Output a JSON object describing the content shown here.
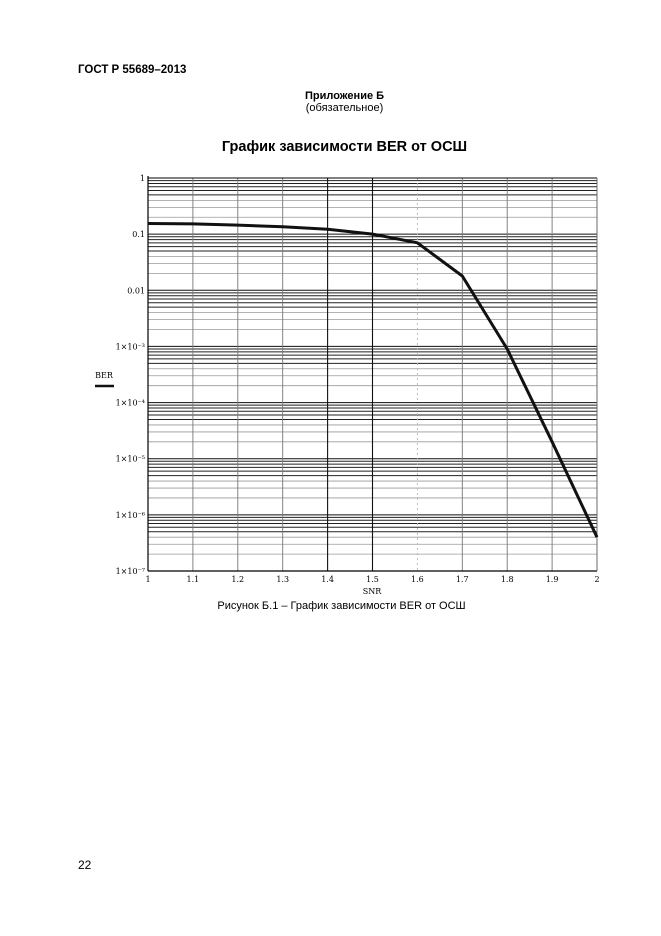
{
  "header": {
    "doc_code": "ГОСТ Р 55689–2013"
  },
  "appendix": {
    "title": "Приложение Б",
    "subtitle": "(обязательное)"
  },
  "figure": {
    "title": "График зависимости BER от ОСШ",
    "caption": "Рисунок Б.1 – График зависимости BER от ОСШ"
  },
  "footer": {
    "page_number": "22"
  },
  "chart_data": {
    "type": "line",
    "title": "График зависимости BER от ОСШ",
    "xlabel": "SNR",
    "ylabel": "BER",
    "xscale": "linear",
    "yscale": "log",
    "xlim": [
      1,
      2
    ],
    "ylim": [
      1e-07,
      1
    ],
    "grid": true,
    "legend": {
      "entries": [
        "BER"
      ],
      "position": "left of y-axis (line sample under label)"
    },
    "x_ticks": [
      "1",
      "1.1",
      "1.2",
      "1.3",
      "1.4",
      "1.5",
      "1.6",
      "1.7",
      "1.8",
      "1.9",
      "2"
    ],
    "y_ticks": [
      "1",
      "0.1",
      "0.01",
      "1×10⁻³",
      "1×10⁻⁴",
      "1×10⁻⁵",
      "1×10⁻⁶",
      "1×10⁻⁷"
    ],
    "series": [
      {
        "name": "BER",
        "x": [
          1.0,
          1.1,
          1.2,
          1.3,
          1.4,
          1.5,
          1.6,
          1.7,
          1.8,
          1.9,
          2.0
        ],
        "values": [
          0.155,
          0.152,
          0.145,
          0.135,
          0.122,
          0.1,
          0.07,
          0.018,
          0.0009,
          2e-05,
          4e-07
        ]
      }
    ]
  }
}
